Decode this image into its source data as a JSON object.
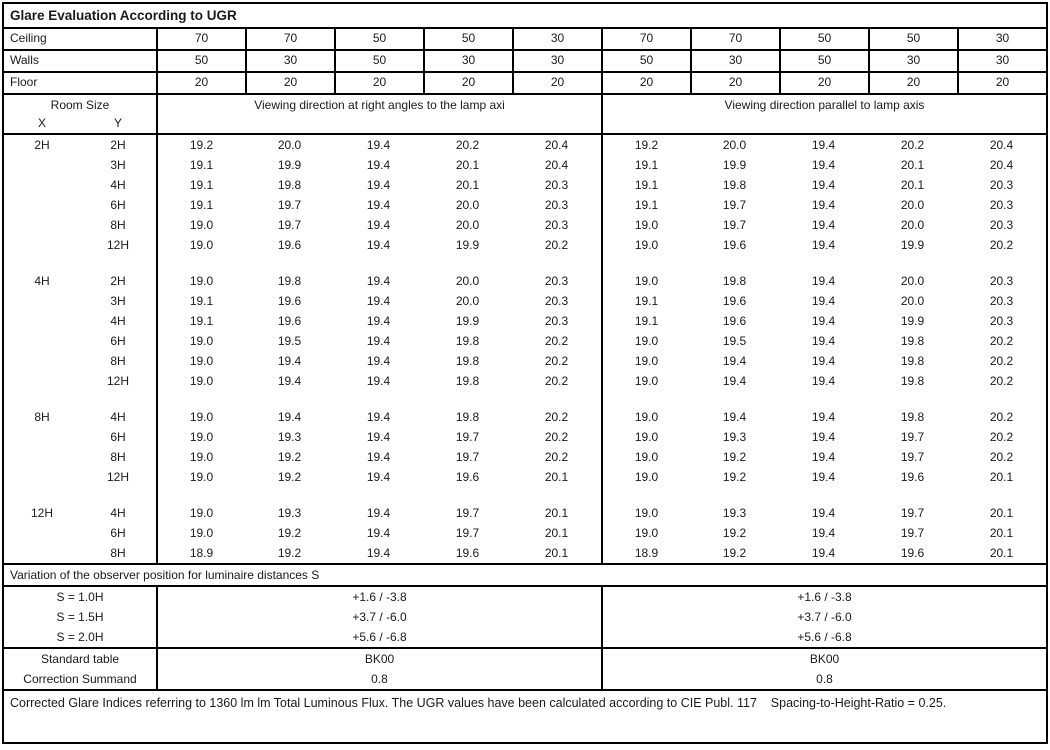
{
  "title": "Glare Evaluation According to UGR",
  "surfaces": {
    "ceiling": {
      "label": "Ceiling",
      "values": [
        "70",
        "70",
        "50",
        "50",
        "30",
        "70",
        "70",
        "50",
        "50",
        "30"
      ]
    },
    "walls": {
      "label": "Walls",
      "values": [
        "50",
        "30",
        "50",
        "30",
        "30",
        "50",
        "30",
        "50",
        "30",
        "30"
      ]
    },
    "floor": {
      "label": "Floor",
      "values": [
        "20",
        "20",
        "20",
        "20",
        "20",
        "20",
        "20",
        "20",
        "20",
        "20"
      ]
    }
  },
  "header": {
    "room_size": "Room Size",
    "x": "X",
    "y": "Y",
    "left_group": "Viewing direction at right angles to the lamp axi",
    "right_group": "Viewing direction parallel to lamp axis"
  },
  "blocks": [
    {
      "x": "2H",
      "rows": [
        {
          "y": "2H",
          "left": [
            "19.2",
            "20.0",
            "19.4",
            "20.2",
            "20.4"
          ],
          "right": [
            "19.2",
            "20.0",
            "19.4",
            "20.2",
            "20.4"
          ]
        },
        {
          "y": "3H",
          "left": [
            "19.1",
            "19.9",
            "19.4",
            "20.1",
            "20.4"
          ],
          "right": [
            "19.1",
            "19.9",
            "19.4",
            "20.1",
            "20.4"
          ]
        },
        {
          "y": "4H",
          "left": [
            "19.1",
            "19.8",
            "19.4",
            "20.1",
            "20.3"
          ],
          "right": [
            "19.1",
            "19.8",
            "19.4",
            "20.1",
            "20.3"
          ]
        },
        {
          "y": "6H",
          "left": [
            "19.1",
            "19.7",
            "19.4",
            "20.0",
            "20.3"
          ],
          "right": [
            "19.1",
            "19.7",
            "19.4",
            "20.0",
            "20.3"
          ]
        },
        {
          "y": "8H",
          "left": [
            "19.0",
            "19.7",
            "19.4",
            "20.0",
            "20.3"
          ],
          "right": [
            "19.0",
            "19.7",
            "19.4",
            "20.0",
            "20.3"
          ]
        },
        {
          "y": "12H",
          "left": [
            "19.0",
            "19.6",
            "19.4",
            "19.9",
            "20.2"
          ],
          "right": [
            "19.0",
            "19.6",
            "19.4",
            "19.9",
            "20.2"
          ]
        }
      ]
    },
    {
      "x": "4H",
      "rows": [
        {
          "y": "2H",
          "left": [
            "19.0",
            "19.8",
            "19.4",
            "20.0",
            "20.3"
          ],
          "right": [
            "19.0",
            "19.8",
            "19.4",
            "20.0",
            "20.3"
          ]
        },
        {
          "y": "3H",
          "left": [
            "19.1",
            "19.6",
            "19.4",
            "20.0",
            "20.3"
          ],
          "right": [
            "19.1",
            "19.6",
            "19.4",
            "20.0",
            "20.3"
          ]
        },
        {
          "y": "4H",
          "left": [
            "19.1",
            "19.6",
            "19.4",
            "19.9",
            "20.3"
          ],
          "right": [
            "19.1",
            "19.6",
            "19.4",
            "19.9",
            "20.3"
          ]
        },
        {
          "y": "6H",
          "left": [
            "19.0",
            "19.5",
            "19.4",
            "19.8",
            "20.2"
          ],
          "right": [
            "19.0",
            "19.5",
            "19.4",
            "19.8",
            "20.2"
          ]
        },
        {
          "y": "8H",
          "left": [
            "19.0",
            "19.4",
            "19.4",
            "19.8",
            "20.2"
          ],
          "right": [
            "19.0",
            "19.4",
            "19.4",
            "19.8",
            "20.2"
          ]
        },
        {
          "y": "12H",
          "left": [
            "19.0",
            "19.4",
            "19.4",
            "19.8",
            "20.2"
          ],
          "right": [
            "19.0",
            "19.4",
            "19.4",
            "19.8",
            "20.2"
          ]
        }
      ]
    },
    {
      "x": "8H",
      "rows": [
        {
          "y": "4H",
          "left": [
            "19.0",
            "19.4",
            "19.4",
            "19.8",
            "20.2"
          ],
          "right": [
            "19.0",
            "19.4",
            "19.4",
            "19.8",
            "20.2"
          ]
        },
        {
          "y": "6H",
          "left": [
            "19.0",
            "19.3",
            "19.4",
            "19.7",
            "20.2"
          ],
          "right": [
            "19.0",
            "19.3",
            "19.4",
            "19.7",
            "20.2"
          ]
        },
        {
          "y": "8H",
          "left": [
            "19.0",
            "19.2",
            "19.4",
            "19.7",
            "20.2"
          ],
          "right": [
            "19.0",
            "19.2",
            "19.4",
            "19.7",
            "20.2"
          ]
        },
        {
          "y": "12H",
          "left": [
            "19.0",
            "19.2",
            "19.4",
            "19.6",
            "20.1"
          ],
          "right": [
            "19.0",
            "19.2",
            "19.4",
            "19.6",
            "20.1"
          ]
        }
      ]
    },
    {
      "x": "12H",
      "rows": [
        {
          "y": "4H",
          "left": [
            "19.0",
            "19.3",
            "19.4",
            "19.7",
            "20.1"
          ],
          "right": [
            "19.0",
            "19.3",
            "19.4",
            "19.7",
            "20.1"
          ]
        },
        {
          "y": "6H",
          "left": [
            "19.0",
            "19.2",
            "19.4",
            "19.7",
            "20.1"
          ],
          "right": [
            "19.0",
            "19.2",
            "19.4",
            "19.7",
            "20.1"
          ]
        },
        {
          "y": "8H",
          "left": [
            "18.9",
            "19.2",
            "19.4",
            "19.6",
            "20.1"
          ],
          "right": [
            "18.9",
            "19.2",
            "19.4",
            "19.6",
            "20.1"
          ]
        }
      ]
    }
  ],
  "variation_heading": "Variation of the observer position for luminaire distances S",
  "variation_rows": [
    {
      "label": "S = 1.0H",
      "left": "+1.6 / -3.8",
      "right": "+1.6 / -3.8"
    },
    {
      "label": "S = 1.5H",
      "left": "+3.7 / -6.0",
      "right": "+3.7 / -6.0"
    },
    {
      "label": "S = 2.0H",
      "left": "+5.6 / -6.8",
      "right": "+5.6 / -6.8"
    }
  ],
  "summary_rows": [
    {
      "label": "Standard table",
      "left": "BK00",
      "right": "BK00"
    },
    {
      "label": "Correction Summand",
      "left": "0.8",
      "right": "0.8"
    }
  ],
  "footer": "Corrected Glare Indices referring to 1360 lm lm Total Luminous Flux. The UGR values have been calculated according to CIE Publ. 117    Spacing-to-Height-Ratio = 0.25.",
  "colors": {
    "border": "#000000",
    "text": "#1a1a1a",
    "background": "#ffffff"
  }
}
